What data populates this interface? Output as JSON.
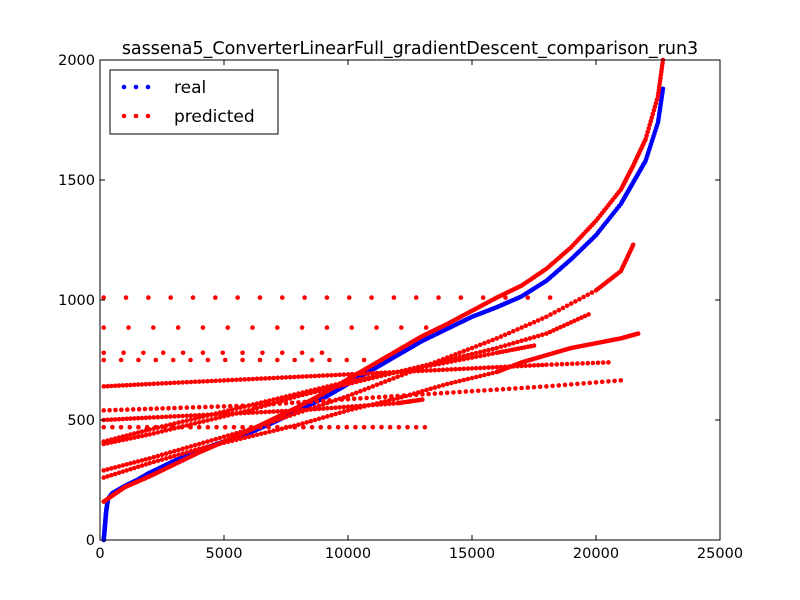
{
  "chart_data": {
    "type": "scatter",
    "title": "sassena5_ConverterLinearFull_gradientDescent_comparison_run3",
    "xlabel": "",
    "ylabel": "",
    "xlim": [
      0,
      25000
    ],
    "ylim": [
      0,
      2000
    ],
    "xticks": [
      0,
      5000,
      10000,
      15000,
      20000,
      25000
    ],
    "yticks": [
      0,
      500,
      1000,
      1500,
      2000
    ],
    "legend_position": "top-left",
    "series": [
      {
        "name": "real",
        "color": "#0000ff",
        "points": [
          [
            150,
            0
          ],
          [
            200,
            60
          ],
          [
            250,
            120
          ],
          [
            320,
            170
          ],
          [
            500,
            195
          ],
          [
            1000,
            225
          ],
          [
            1500,
            250
          ],
          [
            2000,
            280
          ],
          [
            3000,
            330
          ],
          [
            4000,
            375
          ],
          [
            5000,
            410
          ],
          [
            6000,
            445
          ],
          [
            7000,
            490
          ],
          [
            8000,
            540
          ],
          [
            9000,
            590
          ],
          [
            10000,
            650
          ],
          [
            11000,
            710
          ],
          [
            12000,
            770
          ],
          [
            13000,
            830
          ],
          [
            14000,
            880
          ],
          [
            15000,
            930
          ],
          [
            16000,
            970
          ],
          [
            17000,
            1015
          ],
          [
            18000,
            1080
          ],
          [
            19000,
            1170
          ],
          [
            20000,
            1270
          ],
          [
            21000,
            1400
          ],
          [
            21500,
            1490
          ],
          [
            22000,
            1580
          ],
          [
            22500,
            1740
          ],
          [
            22700,
            1880
          ]
        ]
      },
      {
        "name": "predicted",
        "color": "#ff0000",
        "curves": [
          [
            [
              150,
              160
            ],
            [
              1000,
              220
            ],
            [
              2000,
              265
            ],
            [
              3000,
              315
            ],
            [
              4000,
              365
            ],
            [
              5000,
              410
            ],
            [
              6000,
              455
            ],
            [
              7000,
              505
            ],
            [
              8000,
              555
            ],
            [
              9000,
              610
            ],
            [
              10000,
              670
            ],
            [
              11000,
              730
            ],
            [
              12000,
              790
            ],
            [
              13000,
              850
            ],
            [
              14000,
              900
            ],
            [
              15000,
              955
            ],
            [
              16000,
              1010
            ],
            [
              17000,
              1060
            ],
            [
              18000,
              1130
            ],
            [
              19000,
              1220
            ],
            [
              20000,
              1330
            ],
            [
              21000,
              1460
            ],
            [
              21500,
              1560
            ],
            [
              22000,
              1670
            ],
            [
              22500,
              1850
            ],
            [
              22700,
              2000
            ]
          ],
          [
            [
              150,
              290
            ],
            [
              2000,
              340
            ],
            [
              4000,
              400
            ],
            [
              6000,
              460
            ],
            [
              8000,
              530
            ],
            [
              10000,
              600
            ],
            [
              12000,
              680
            ],
            [
              14000,
              760
            ],
            [
              16000,
              840
            ],
            [
              18000,
              930
            ],
            [
              20000,
              1040
            ],
            [
              21000,
              1120
            ],
            [
              21500,
              1230
            ]
          ],
          [
            [
              150,
              400
            ],
            [
              2000,
              440
            ],
            [
              4000,
              490
            ],
            [
              6000,
              540
            ],
            [
              8000,
              600
            ],
            [
              10000,
              650
            ],
            [
              12000,
              700
            ],
            [
              14000,
              750
            ],
            [
              16000,
              800
            ],
            [
              18000,
              860
            ],
            [
              19700,
              940
            ]
          ],
          [
            [
              150,
              260
            ],
            [
              2000,
              320
            ],
            [
              4000,
              380
            ],
            [
              6000,
              430
            ],
            [
              8000,
              480
            ],
            [
              10000,
              540
            ],
            [
              12000,
              590
            ],
            [
              14000,
              650
            ],
            [
              16000,
              700
            ],
            [
              17000,
              740
            ],
            [
              18000,
              770
            ],
            [
              19000,
              800
            ],
            [
              20000,
              820
            ],
            [
              21000,
              840
            ],
            [
              21700,
              860
            ]
          ],
          [
            [
              150,
              410
            ],
            [
              2000,
              460
            ],
            [
              4000,
              510
            ],
            [
              6000,
              560
            ],
            [
              8000,
              610
            ],
            [
              10000,
              660
            ],
            [
              12000,
              700
            ],
            [
              14000,
              740
            ],
            [
              16000,
              780
            ],
            [
              17500,
              810
            ]
          ],
          [
            [
              150,
              640
            ],
            [
              2000,
              650
            ],
            [
              4000,
              660
            ],
            [
              6000,
              670
            ],
            [
              8000,
              680
            ],
            [
              10000,
              690
            ],
            [
              12000,
              700
            ],
            [
              14000,
              710
            ],
            [
              16000,
              720
            ],
            [
              18000,
              730
            ],
            [
              20500,
              740
            ]
          ],
          [
            [
              150,
              540
            ],
            [
              3000,
              550
            ],
            [
              6000,
              560
            ],
            [
              9000,
              580
            ],
            [
              12000,
              600
            ],
            [
              15000,
              620
            ],
            [
              18000,
              640
            ],
            [
              21000,
              665
            ]
          ],
          [
            [
              150,
              500
            ],
            [
              2000,
              510
            ],
            [
              4000,
              520
            ],
            [
              6000,
              530
            ],
            [
              8000,
              540
            ],
            [
              10000,
              555
            ],
            [
              12000,
              570
            ],
            [
              13000,
              585
            ]
          ]
        ],
        "rows": [
          {
            "y": 1010,
            "x0": 150,
            "x1": 18500,
            "step": 900
          },
          {
            "y": 885,
            "x0": 150,
            "x1": 13800,
            "step": 1000
          },
          {
            "y": 780,
            "x0": 150,
            "x1": 9500,
            "step": 800
          },
          {
            "y": 750,
            "x0": 150,
            "x1": 11500,
            "step": 700
          },
          {
            "y": 470,
            "x0": 150,
            "x1": 13200,
            "step": 350
          }
        ]
      }
    ]
  }
}
